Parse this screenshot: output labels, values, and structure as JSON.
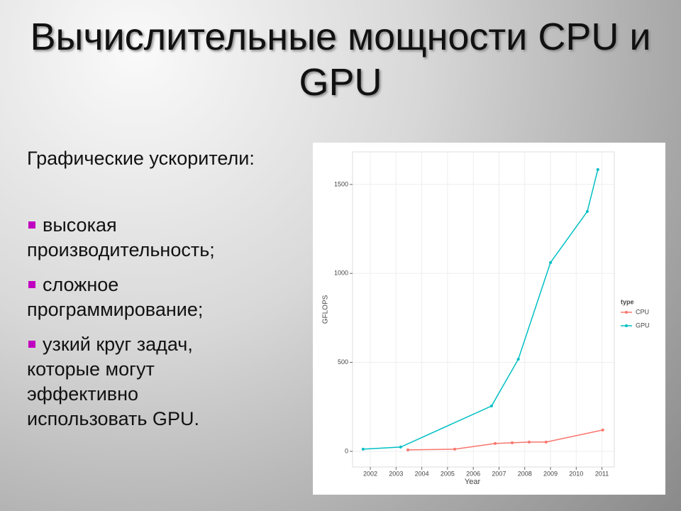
{
  "slide": {
    "title": "Вычислительные мощности CPU и GPU",
    "subtitle": "Графические ускорители:",
    "bullets": [
      "высокая производительность;",
      "сложное программирование;",
      "узкий круг задач, которые могут эффективно использовать GPU."
    ]
  },
  "chart_data": {
    "type": "line",
    "x_label": "Year",
    "y_label": "GFLOPS",
    "legend_title": "type",
    "legend": "right",
    "grid": true,
    "xlim": [
      2001.31,
      2011.48
    ],
    "ylim": [
      -88,
      1683
    ],
    "xticks": [
      2002,
      2003,
      2004,
      2005,
      2006,
      2007,
      2008,
      2009,
      2010,
      2011
    ],
    "yticks": [
      0,
      500,
      1000,
      1500
    ],
    "series": [
      {
        "name": "CPU",
        "color": "#f8766d",
        "x": [
          2003.46,
          2005.28,
          2006.85,
          2007.51,
          2008.17,
          2008.83,
          2011.03
        ],
        "values": [
          8,
          12,
          44,
          48,
          52,
          52,
          120
        ]
      },
      {
        "name": "GPU",
        "color": "#00bfc4",
        "x": [
          2001.72,
          2003.18,
          2006.71,
          2007.75,
          2009.0,
          2010.43,
          2010.84
        ],
        "values": [
          12,
          24,
          255,
          518,
          1061,
          1348,
          1584
        ]
      }
    ]
  }
}
